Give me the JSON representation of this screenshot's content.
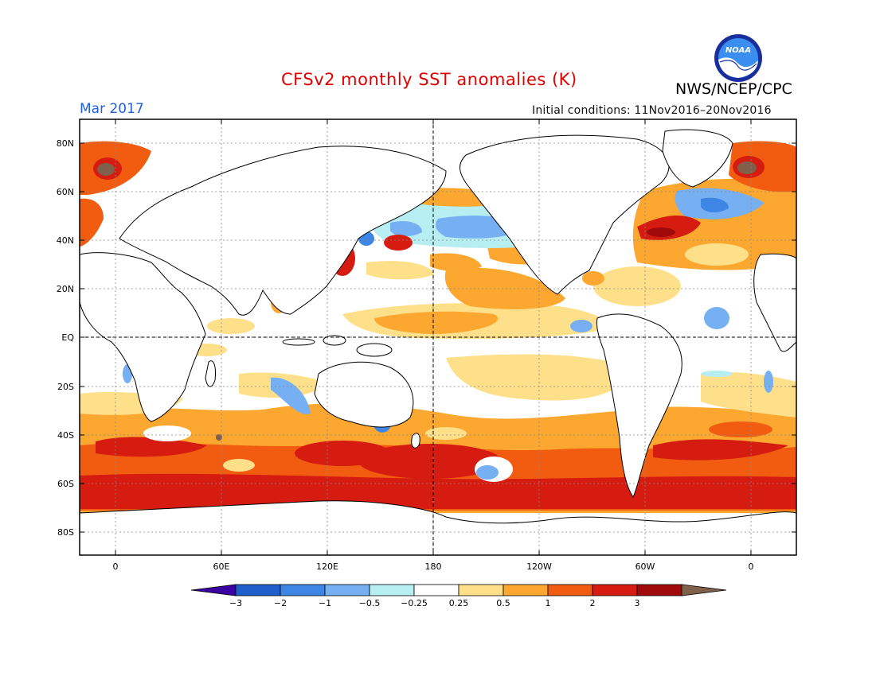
{
  "header": {
    "title": "CFSv2 monthly SST anomalies (K)",
    "agency": "NWS/NCEP/CPC",
    "date": "Mar 2017",
    "initial_conditions": "Initial conditions: 11Nov2016–20Nov2016"
  },
  "logo": {
    "text": "NOAA",
    "icon": "noaa-logo"
  },
  "axes": {
    "y_ticks": [
      "80N",
      "60N",
      "40N",
      "20N",
      "EQ",
      "20S",
      "40S",
      "60S",
      "80S"
    ],
    "x_ticks": [
      "0",
      "60E",
      "120E",
      "180",
      "120W",
      "60W",
      "0"
    ]
  },
  "colorbar": {
    "labels": [
      "−3",
      "−2",
      "−1",
      "−0.5",
      "−0.25",
      "0.25",
      "0.5",
      "1",
      "2",
      "3"
    ],
    "colors": [
      "#3a00a0",
      "#1e5fcc",
      "#3d86e6",
      "#76aff2",
      "#b6eef2",
      "#ffffff",
      "#ffe08a",
      "#fba730",
      "#f25c10",
      "#d61c10",
      "#a00a0a",
      "#80604a"
    ]
  },
  "colors": {
    "title": "#e00000",
    "date": "#1f5fe0"
  }
}
